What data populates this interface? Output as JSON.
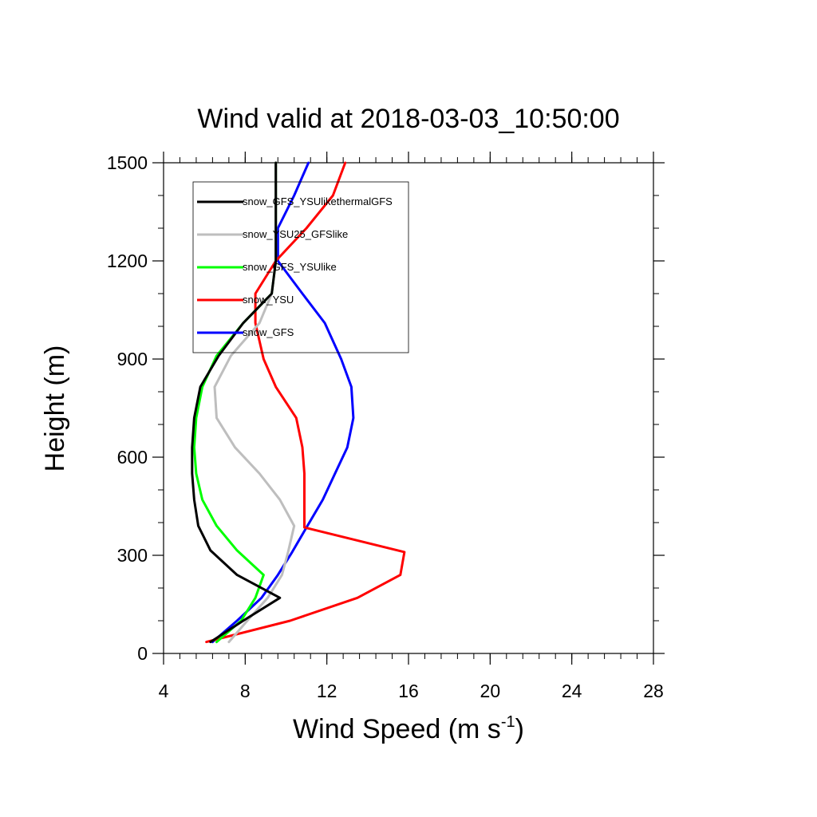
{
  "chart_data": {
    "type": "line",
    "title": "Wind valid at 2018-03-03_10:50:00",
    "xlabel": "Wind Speed (m s",
    "xlabel_superscript": "-1",
    "xlabel_suffix": ")",
    "ylabel": "Height (m)",
    "xlim": [
      4,
      28
    ],
    "ylim": [
      0,
      1500
    ],
    "xticks": [
      4,
      8,
      12,
      16,
      20,
      24,
      28
    ],
    "yticks": [
      0,
      300,
      600,
      900,
      1200,
      1500
    ],
    "xtick_labels": [
      "4",
      "8",
      "12",
      "16",
      "20",
      "24",
      "28"
    ],
    "ytick_labels": [
      "0",
      "300",
      "600",
      "900",
      "1200",
      "1500"
    ],
    "x_minor_step": 0.8,
    "y_minor_step": 100,
    "grid": false,
    "legend_position": "top-left, inside",
    "series": [
      {
        "name": "snow_GFS_YSUlikethermalGFS",
        "color": "#000000",
        "points": [
          [
            6.3,
            35
          ],
          [
            7.9,
            100
          ],
          [
            9.7,
            170
          ],
          [
            7.6,
            240
          ],
          [
            6.3,
            315
          ],
          [
            5.7,
            390
          ],
          [
            5.5,
            470
          ],
          [
            5.4,
            550
          ],
          [
            5.4,
            630
          ],
          [
            5.5,
            720
          ],
          [
            5.8,
            815
          ],
          [
            6.7,
            910
          ],
          [
            7.9,
            1010
          ],
          [
            9.3,
            1100
          ],
          [
            9.5,
            1200
          ],
          [
            9.5,
            1300
          ],
          [
            9.5,
            1400
          ],
          [
            9.5,
            1500
          ]
        ]
      },
      {
        "name": "snow_YSU25_GFSlike",
        "color": "#bebebe",
        "points": [
          [
            7.2,
            35
          ],
          [
            8.1,
            100
          ],
          [
            9.1,
            170
          ],
          [
            9.8,
            240
          ],
          [
            10.1,
            310
          ],
          [
            10.4,
            390
          ],
          [
            9.7,
            470
          ],
          [
            8.7,
            550
          ],
          [
            7.5,
            630
          ],
          [
            6.6,
            720
          ],
          [
            6.5,
            815
          ],
          [
            7.3,
            910
          ],
          [
            8.7,
            1010
          ],
          [
            9.3,
            1100
          ],
          [
            9.5,
            1200
          ],
          [
            9.5,
            1300
          ],
          [
            9.5,
            1400
          ],
          [
            9.5,
            1500
          ]
        ]
      },
      {
        "name": "snow_GFS_YSUlike",
        "color": "#00ff00",
        "points": [
          [
            6.6,
            35
          ],
          [
            7.8,
            100
          ],
          [
            8.5,
            170
          ],
          [
            8.9,
            240
          ],
          [
            7.6,
            315
          ],
          [
            6.6,
            390
          ],
          [
            5.9,
            470
          ],
          [
            5.6,
            550
          ],
          [
            5.5,
            630
          ],
          [
            5.6,
            720
          ],
          [
            5.9,
            815
          ],
          [
            6.6,
            910
          ],
          [
            7.9,
            1010
          ],
          [
            9.3,
            1100
          ],
          [
            9.5,
            1200
          ],
          [
            9.5,
            1300
          ],
          [
            9.5,
            1400
          ],
          [
            9.5,
            1500
          ]
        ]
      },
      {
        "name": "snow_YSU",
        "color": "#ff0000",
        "points": [
          [
            6.1,
            35
          ],
          [
            10.2,
            100
          ],
          [
            13.5,
            170
          ],
          [
            15.6,
            240
          ],
          [
            15.8,
            310
          ],
          [
            10.9,
            385
          ],
          [
            10.9,
            470
          ],
          [
            10.9,
            550
          ],
          [
            10.8,
            630
          ],
          [
            10.5,
            720
          ],
          [
            9.5,
            815
          ],
          [
            8.9,
            900
          ],
          [
            8.5,
            1010
          ],
          [
            8.5,
            1100
          ],
          [
            9.5,
            1200
          ],
          [
            11.0,
            1300
          ],
          [
            12.3,
            1400
          ],
          [
            12.9,
            1500
          ]
        ]
      },
      {
        "name": "snow_GFS",
        "color": "#0000ff",
        "points": [
          [
            6.4,
            35
          ],
          [
            7.6,
            100
          ],
          [
            8.8,
            170
          ],
          [
            9.6,
            240
          ],
          [
            10.3,
            310
          ],
          [
            11.0,
            385
          ],
          [
            11.8,
            470
          ],
          [
            12.4,
            550
          ],
          [
            13.0,
            630
          ],
          [
            13.3,
            720
          ],
          [
            13.2,
            815
          ],
          [
            12.7,
            900
          ],
          [
            11.9,
            1010
          ],
          [
            10.8,
            1100
          ],
          [
            9.6,
            1200
          ],
          [
            9.6,
            1300
          ],
          [
            10.4,
            1400
          ],
          [
            11.1,
            1500
          ]
        ]
      }
    ]
  }
}
